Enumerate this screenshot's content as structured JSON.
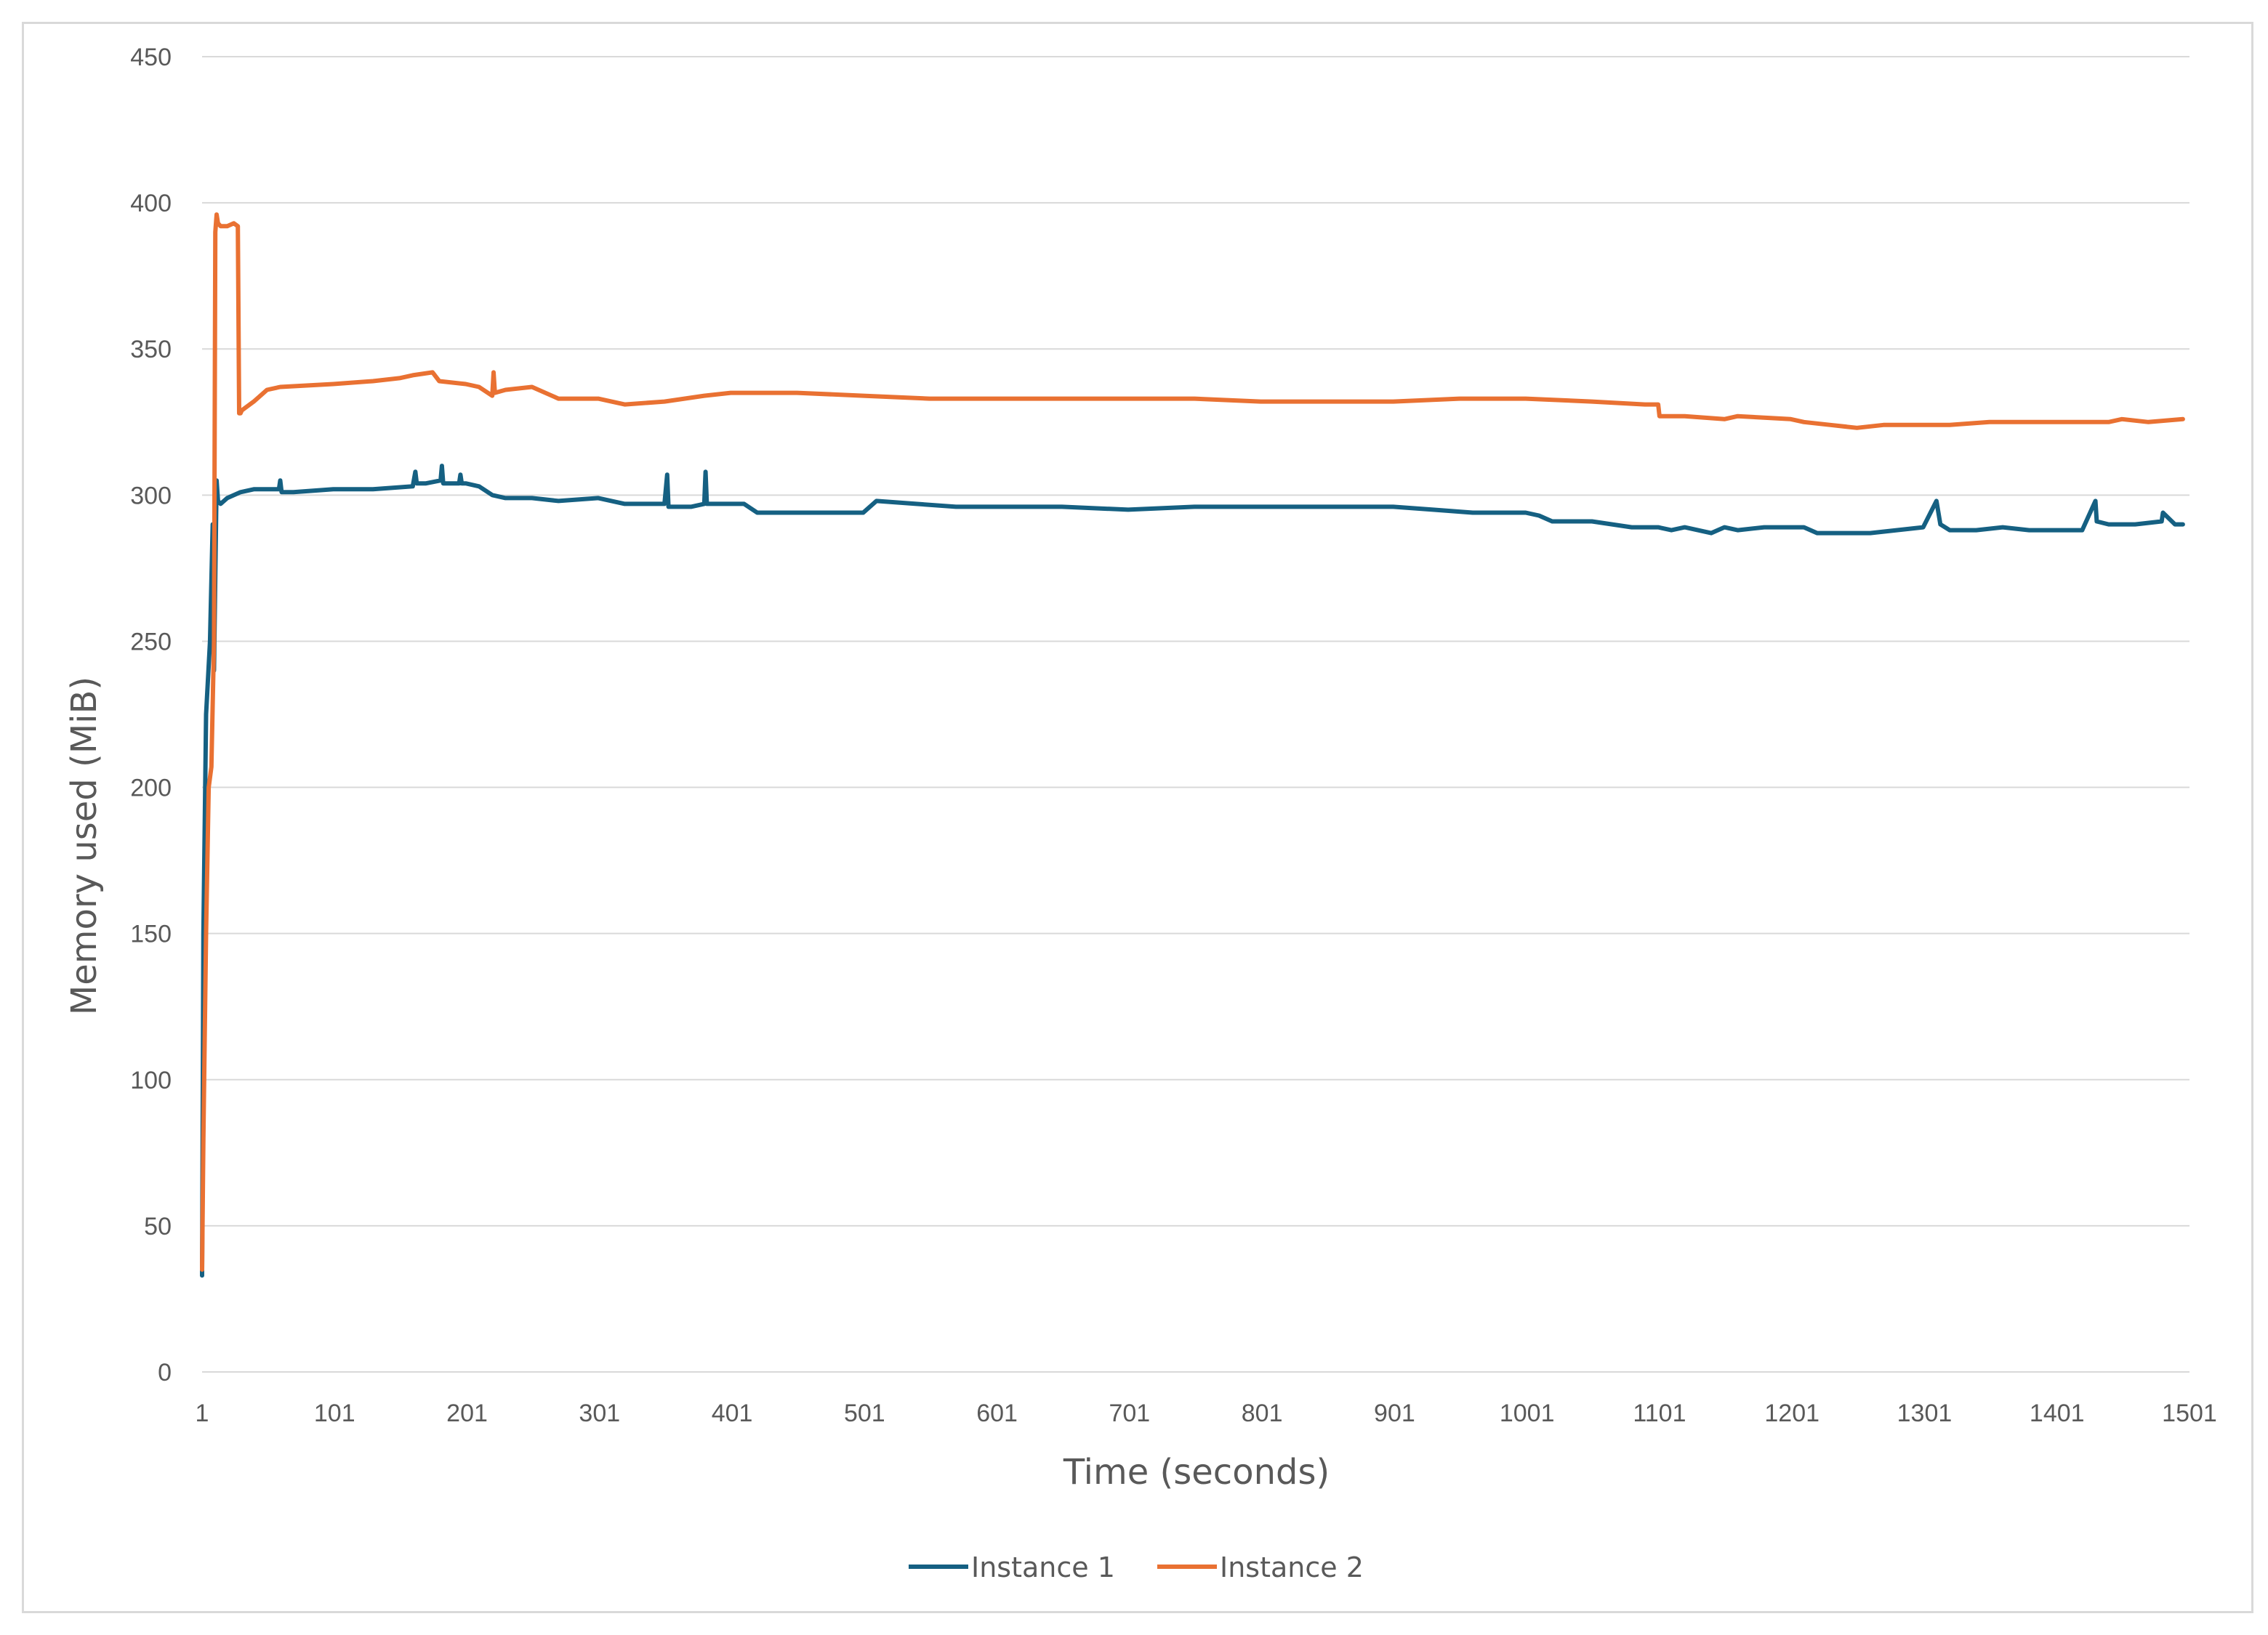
{
  "chart_data": {
    "type": "line",
    "title": "",
    "xlabel": "Time (seconds)",
    "ylabel": "Memory used (MiB)",
    "ylim": [
      0,
      450
    ],
    "yticks": [
      "0",
      "50",
      "100",
      "150",
      "200",
      "250",
      "300",
      "350",
      "400",
      "450"
    ],
    "xlim": [
      1,
      1501
    ],
    "xticks": [
      "1",
      "101",
      "201",
      "301",
      "401",
      "501",
      "601",
      "701",
      "801",
      "901",
      "1001",
      "1101",
      "1201",
      "1301",
      "1401",
      "1501"
    ],
    "grid": true,
    "legend_position": "bottom",
    "series": [
      {
        "name": "Instance 1",
        "color": "#156082",
        "x": [
          1,
          2,
          4,
          7,
          9,
          10,
          12,
          13,
          15,
          20,
          30,
          40,
          50,
          59,
          60,
          61,
          70,
          100,
          130,
          160,
          162,
          163,
          170,
          181,
          182,
          183,
          195,
          196,
          197,
          200,
          210,
          220,
          230,
          250,
          270,
          300,
          320,
          350,
          352,
          353,
          370,
          380,
          381,
          382,
          400,
          410,
          420,
          450,
          480,
          500,
          510,
          540,
          570,
          600,
          650,
          700,
          750,
          800,
          850,
          880,
          900,
          930,
          960,
          1000,
          1010,
          1020,
          1050,
          1080,
          1100,
          1110,
          1120,
          1140,
          1150,
          1160,
          1180,
          1200,
          1210,
          1220,
          1240,
          1260,
          1280,
          1300,
          1310,
          1313,
          1320,
          1330,
          1340,
          1360,
          1380,
          1400,
          1420,
          1430,
          1431,
          1440,
          1460,
          1480,
          1481,
          1490,
          1496
        ],
        "y": [
          33,
          150,
          225,
          250,
          290,
          240,
          305,
          298,
          297,
          299,
          301,
          302,
          302,
          302,
          305,
          301,
          301,
          302,
          302,
          303,
          308,
          304,
          304,
          305,
          310,
          304,
          304,
          307,
          304,
          304,
          303,
          300,
          299,
          299,
          298,
          299,
          297,
          297,
          307,
          296,
          296,
          297,
          308,
          297,
          297,
          297,
          294,
          294,
          294,
          294,
          298,
          297,
          296,
          296,
          296,
          295,
          296,
          296,
          296,
          296,
          296,
          295,
          294,
          294,
          293,
          291,
          291,
          289,
          289,
          288,
          289,
          287,
          289,
          288,
          289,
          289,
          289,
          287,
          287,
          287,
          288,
          289,
          298,
          290,
          288,
          288,
          288,
          289,
          288,
          288,
          288,
          298,
          291,
          290,
          290,
          291,
          294,
          290,
          290
        ]
      },
      {
        "name": "Instance 2",
        "color": "#e97132",
        "x": [
          1,
          2,
          4,
          6,
          8,
          10,
          11,
          12,
          13,
          15,
          20,
          25,
          28,
          29,
          30,
          31,
          40,
          50,
          60,
          100,
          130,
          150,
          160,
          175,
          180,
          200,
          210,
          220,
          221,
          222,
          230,
          250,
          270,
          300,
          320,
          350,
          380,
          400,
          450,
          500,
          550,
          600,
          650,
          700,
          750,
          800,
          850,
          880,
          900,
          950,
          1000,
          1050,
          1090,
          1100,
          1101,
          1120,
          1150,
          1160,
          1200,
          1210,
          1230,
          1250,
          1270,
          1300,
          1320,
          1350,
          1400,
          1420,
          1440,
          1450,
          1470,
          1496
        ],
        "y": [
          35,
          80,
          150,
          200,
          207,
          250,
          390,
          396,
          393,
          392,
          392,
          393,
          392,
          328,
          328,
          329,
          332,
          336,
          337,
          338,
          339,
          340,
          341,
          342,
          339,
          338,
          337,
          334,
          342,
          335,
          336,
          337,
          333,
          333,
          331,
          332,
          334,
          335,
          335,
          334,
          333,
          333,
          333,
          333,
          333,
          332,
          332,
          332,
          332,
          333,
          333,
          332,
          331,
          331,
          327,
          327,
          326,
          327,
          326,
          325,
          324,
          323,
          324,
          324,
          324,
          325,
          325,
          325,
          325,
          326,
          325,
          326
        ]
      }
    ]
  }
}
